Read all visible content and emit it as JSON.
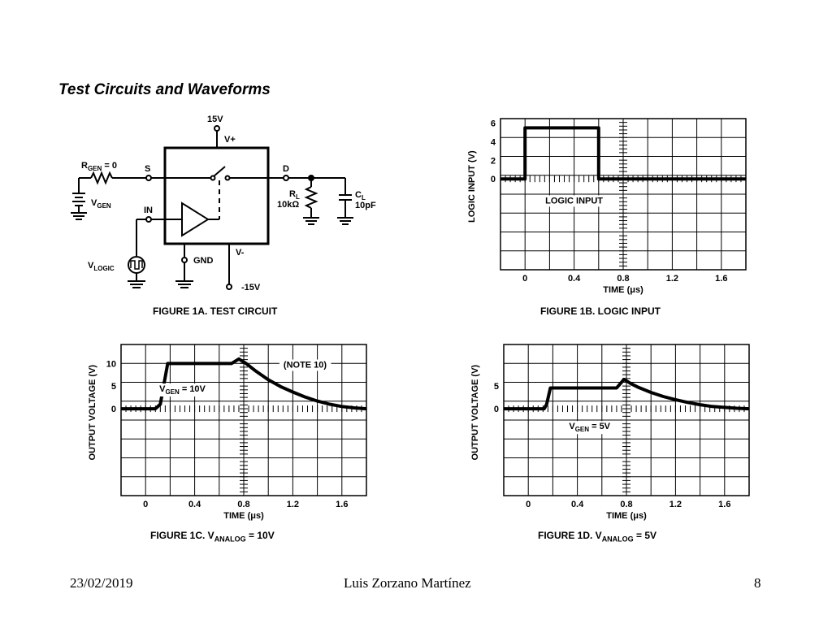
{
  "slide": {
    "title": "Test Circuits and Waveforms",
    "footer": {
      "date": "23/02/2019",
      "author": "Luis Zorzano Martínez",
      "page": "8"
    }
  },
  "circuit": {
    "caption": "FIGURE 1A.  TEST CIRCUIT",
    "labels": {
      "vplus_supply": "15V",
      "vplus": "V+",
      "rgen_main": "R",
      "rgen_sub": "GEN",
      "rgen_val": " = 0",
      "s": "S",
      "d": "D",
      "vgen_main": "V",
      "vgen_sub": "GEN",
      "in": "IN",
      "rl_main": "R",
      "rl_sub": "L",
      "rl_val": "10kΩ",
      "cl_main": "C",
      "cl_sub": "L",
      "cl_val": "10pF",
      "gnd": "GND",
      "vminus": "V-",
      "vminus_supply": "-15V",
      "vlogic_main": "V",
      "vlogic_sub": "LOGIC"
    }
  },
  "chart_data": [
    {
      "id": "fig1b",
      "type": "line",
      "caption": "FIGURE 1B.  LOGIC INPUT",
      "xlabel": "TIME (μs)",
      "ylabel": "LOGIC INPUT (V)",
      "xlim": [
        -0.2,
        1.8
      ],
      "ylim": [
        -9.8,
        6.5
      ],
      "x_ticks": [
        "0",
        "0.4",
        "0.8",
        "1.2",
        "1.6"
      ],
      "x_tick_values": [
        0,
        0.4,
        0.8,
        1.2,
        1.6
      ],
      "y_ticks": [
        "0",
        "2",
        "4",
        "6"
      ],
      "y_tick_values": [
        0,
        2,
        4,
        6
      ],
      "grid": true,
      "annotations": [
        "LOGIC INPUT"
      ],
      "series": [
        {
          "x": [
            -0.2,
            0.0,
            0.0,
            0.6,
            0.6,
            1.8
          ],
          "y": [
            0,
            0,
            5.5,
            5.5,
            0,
            0
          ]
        }
      ]
    },
    {
      "id": "fig1c",
      "type": "line",
      "caption_main": "FIGURE 1C.  V",
      "caption_sub": "ANALOG",
      "caption_tail": " = 10V",
      "xlabel": "TIME (μs)",
      "ylabel": "OUTPUT VOLTAGE (V)",
      "xlim": [
        -0.2,
        1.8
      ],
      "ylim": [
        -19.2,
        14.2
      ],
      "x_ticks": [
        "0",
        "0.4",
        "0.8",
        "1.2",
        "1.6"
      ],
      "x_tick_values": [
        0,
        0.4,
        0.8,
        1.2,
        1.6
      ],
      "y_ticks": [
        "0",
        "5",
        "10"
      ],
      "y_tick_values": [
        0,
        5,
        10
      ],
      "grid": true,
      "annotations": [
        "(NOTE 10)"
      ],
      "series_label_main": "V",
      "series_label_sub": "GEN",
      "series_label_tail": " = 10V",
      "series": [
        {
          "x": [
            -0.2,
            0.08,
            0.12,
            0.18,
            0.7,
            0.76,
            0.82,
            0.9,
            1.0,
            1.1,
            1.2,
            1.3,
            1.4,
            1.5,
            1.6,
            1.7,
            1.8
          ],
          "y": [
            0,
            0,
            1,
            10,
            10,
            11,
            10,
            8.3,
            6.4,
            4.9,
            3.7,
            2.6,
            1.7,
            1.0,
            0.5,
            0.2,
            0
          ]
        }
      ]
    },
    {
      "id": "fig1d",
      "type": "line",
      "caption_main": "FIGURE 1D.  V",
      "caption_sub": "ANALOG",
      "caption_tail": " = 5V",
      "xlabel": "TIME (μs)",
      "ylabel": "OUTPUT VOLTAGE (V)",
      "xlim": [
        -0.2,
        1.8
      ],
      "ylim": [
        -19.2,
        14.2
      ],
      "x_ticks": [
        "0",
        "0.4",
        "0.8",
        "1.2",
        "1.6"
      ],
      "x_tick_values": [
        0,
        0.4,
        0.8,
        1.2,
        1.6
      ],
      "y_ticks": [
        "0",
        "5"
      ],
      "y_tick_values": [
        0,
        5
      ],
      "grid": true,
      "annotations": [],
      "series_label_main": "V",
      "series_label_sub": "GEN",
      "series_label_tail": " = 5V",
      "series": [
        {
          "x": [
            -0.2,
            0.13,
            0.15,
            0.18,
            0.72,
            0.78,
            0.84,
            0.9,
            1.0,
            1.1,
            1.2,
            1.3,
            1.4,
            1.5,
            1.6,
            1.7,
            1.8
          ],
          "y": [
            0,
            0,
            1,
            4.6,
            4.6,
            6.5,
            5.5,
            4.7,
            3.6,
            2.7,
            2.0,
            1.4,
            0.9,
            0.5,
            0.3,
            0.1,
            0
          ]
        }
      ]
    }
  ]
}
